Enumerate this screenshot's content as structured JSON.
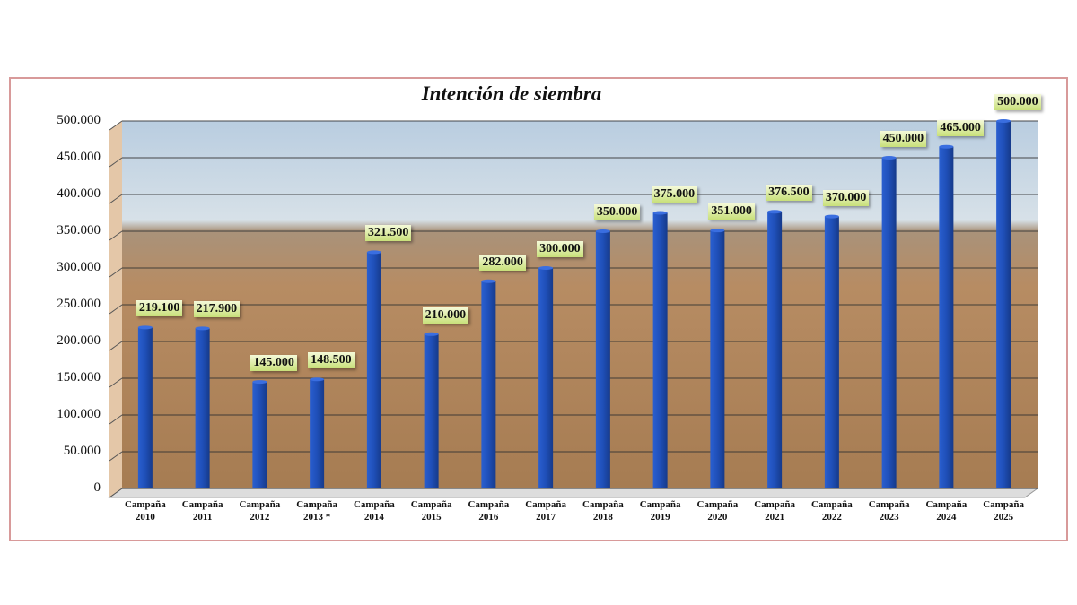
{
  "chart_data": {
    "type": "bar",
    "title": "Intención de siembra",
    "categories": [
      "Campaña 2010",
      "Campaña 2011",
      "Campaña 2012",
      "Campaña 2013 *",
      "Campaña 2014",
      "Campaña 2015",
      "Campaña 2016",
      "Campaña 2017",
      "Campaña 2018",
      "Campaña 2019",
      "Campaña 2020",
      "Campaña 2021",
      "Campaña 2022",
      "Campaña 2023",
      "Campaña 2024",
      "Campaña 2025"
    ],
    "values": [
      219100,
      217900,
      145000,
      148500,
      321500,
      210000,
      282000,
      300000,
      350000,
      375000,
      351000,
      376500,
      370000,
      450000,
      465000,
      500000
    ],
    "value_labels": [
      "219.100",
      "217.900",
      "145.000",
      "148.500",
      "321.500",
      "210.000",
      "282.000",
      "300.000",
      "350.000",
      "375.000",
      "351.000",
      "376.500",
      "370.000",
      "450.000",
      "465.000",
      "500.000"
    ],
    "color": "#1f4fb8",
    "ylim": [
      0,
      500000
    ],
    "yticks": [
      0,
      {
        "value": 50000,
        "label": "50.000"
      },
      {
        "value": 100000,
        "label": "100.000"
      },
      {
        "value": 150000,
        "label": "150.000"
      },
      {
        "value": 200000,
        "label": "200.000"
      },
      {
        "value": 250000,
        "label": "250.000"
      },
      {
        "value": 300000,
        "label": "300.000"
      },
      {
        "value": 350000,
        "label": "350.000"
      },
      {
        "value": 400000,
        "label": "400.000"
      },
      {
        "value": 450000,
        "label": "450.000"
      },
      {
        "value": 500000,
        "label": "500.000"
      }
    ],
    "grid": true
  }
}
